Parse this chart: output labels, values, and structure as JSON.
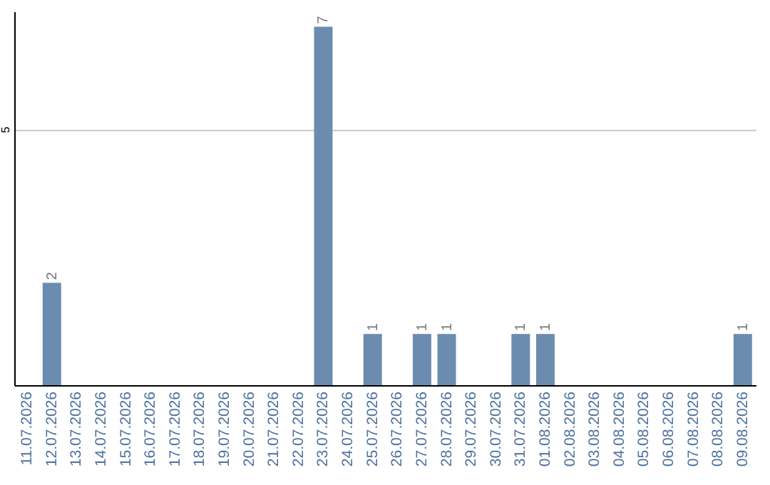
{
  "chart_data": {
    "type": "bar",
    "categories": [
      "11.07.2026",
      "12.07.2026",
      "13.07.2026",
      "14.07.2026",
      "15.07.2026",
      "16.07.2026",
      "17.07.2026",
      "18.07.2026",
      "19.07.2026",
      "20.07.2026",
      "21.07.2026",
      "22.07.2026",
      "23.07.2026",
      "24.07.2026",
      "25.07.2026",
      "26.07.2026",
      "27.07.2026",
      "28.07.2026",
      "29.07.2026",
      "30.07.2026",
      "31.07.2026",
      "01.08.2026",
      "02.08.2026",
      "03.08.2026",
      "04.08.2026",
      "05.08.2026",
      "06.08.2026",
      "07.08.2026",
      "08.08.2026",
      "09.08.2026"
    ],
    "values": [
      0,
      2,
      0,
      0,
      0,
      0,
      0,
      0,
      0,
      0,
      0,
      0,
      7,
      0,
      1,
      0,
      1,
      1,
      0,
      0,
      1,
      1,
      0,
      0,
      0,
      0,
      0,
      0,
      0,
      1
    ],
    "value_labels": [
      null,
      "2",
      null,
      null,
      null,
      null,
      null,
      null,
      null,
      null,
      null,
      null,
      "7",
      null,
      "1",
      null,
      "1",
      "1",
      null,
      null,
      "1",
      "1",
      null,
      null,
      null,
      null,
      null,
      null,
      null,
      "1"
    ],
    "color": "#6b8cae",
    "ylim": [
      0,
      7.3
    ],
    "yticks": [
      5
    ],
    "grid": "y"
  }
}
